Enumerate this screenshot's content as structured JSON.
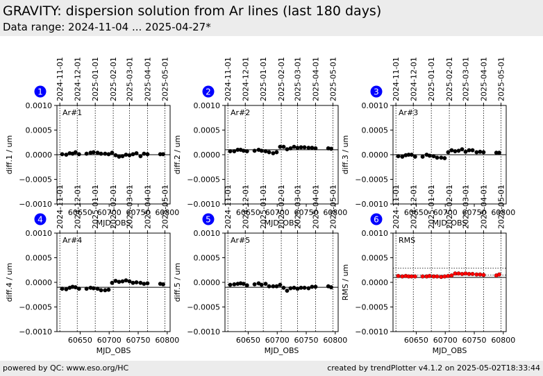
{
  "header": {
    "title": "GRAVITY: dispersion solution from Ar lines (last 180 days)",
    "subtitle": "Data range: 2024-11-04 ... 2025-04-27*"
  },
  "footer": {
    "left": "powered by QC: www.eso.org/HC",
    "right": "created by trendPlotter v4.1.2 on 2025-05-02T18:33:44"
  },
  "chart_data": [
    {
      "type": "scatter",
      "number": "1",
      "label": "Ar#1",
      "ylabel": "diff.1 / um",
      "xlabel": "MJD_OBS",
      "xlim": [
        60610,
        60805
      ],
      "ylim": [
        -0.001,
        0.001
      ],
      "x": [
        60619,
        60626,
        60632,
        60637,
        60642,
        60648,
        60661,
        60668,
        60673,
        60680,
        60686,
        60693,
        60699,
        60705,
        60711,
        60717,
        60723,
        60729,
        60735,
        60741,
        60747,
        60754,
        60760,
        60766,
        60788,
        60793
      ],
      "y": [
        1e-05,
        0.0,
        3e-05,
        2e-05,
        5e-05,
        1e-05,
        2e-05,
        4e-05,
        5e-05,
        4e-05,
        2e-05,
        2e-05,
        1e-05,
        4e-05,
        -1e-05,
        -4e-05,
        -3e-05,
        0.0,
        -1e-05,
        1e-05,
        3e-05,
        -3e-05,
        2e-05,
        1e-05,
        1e-05,
        1e-05
      ],
      "ref_line": 0.0
    },
    {
      "type": "scatter",
      "number": "2",
      "label": "Ar#2",
      "ylabel": "diff.2 / um",
      "xlabel": "MJD_OBS",
      "xlim": [
        60610,
        60805
      ],
      "ylim": [
        -0.001,
        0.001
      ],
      "x": [
        60619,
        60626,
        60632,
        60637,
        60642,
        60648,
        60661,
        60668,
        60673,
        60680,
        60686,
        60693,
        60699,
        60705,
        60711,
        60717,
        60723,
        60729,
        60735,
        60741,
        60747,
        60754,
        60760,
        60766,
        60788,
        60793
      ],
      "y": [
        7e-05,
        7e-05,
        0.0001,
        0.0001,
        8e-05,
        7e-05,
        8e-05,
        0.0001,
        8e-05,
        7e-05,
        5e-05,
        3e-05,
        5e-05,
        0.00016,
        0.00016,
        0.00011,
        0.00013,
        0.00016,
        0.00014,
        0.00015,
        0.00015,
        0.00014,
        0.00014,
        0.00013,
        0.00013,
        0.00012
      ],
      "ref_line": 0.0001
    },
    {
      "type": "scatter",
      "number": "3",
      "label": "Ar#3",
      "ylabel": "diff.3 / um",
      "xlabel": "MJD_OBS",
      "xlim": [
        60610,
        60805
      ],
      "ylim": [
        -0.001,
        0.001
      ],
      "x": [
        60619,
        60626,
        60632,
        60637,
        60642,
        60648,
        60661,
        60668,
        60673,
        60680,
        60686,
        60693,
        60699,
        60705,
        60711,
        60717,
        60723,
        60729,
        60735,
        60741,
        60747,
        60754,
        60760,
        60766,
        60788,
        60793
      ],
      "y": [
        -3e-05,
        -4e-05,
        -1e-05,
        0.0,
        0.0,
        -4e-05,
        -4e-05,
        0.0,
        -2e-05,
        -3e-05,
        -6e-05,
        -6e-05,
        -7e-05,
        5e-05,
        9e-05,
        7e-05,
        8e-05,
        0.00011,
        6e-05,
        9e-05,
        9e-05,
        5e-05,
        6e-05,
        5e-05,
        4e-05,
        4e-05
      ],
      "ref_line": 0.0
    },
    {
      "type": "scatter",
      "number": "4",
      "label": "Ar#4",
      "ylabel": "diff.4 / um",
      "xlabel": "MJD_OBS",
      "xlim": [
        60610,
        60805
      ],
      "ylim": [
        -0.001,
        0.001
      ],
      "x": [
        60619,
        60626,
        60632,
        60637,
        60642,
        60648,
        60661,
        60668,
        60673,
        60680,
        60686,
        60693,
        60699,
        60705,
        60711,
        60717,
        60723,
        60729,
        60735,
        60741,
        60747,
        60754,
        60760,
        60766,
        60788,
        60793
      ],
      "y": [
        -0.00013,
        -0.00014,
        -0.00011,
        -9e-05,
        -0.0001,
        -0.00013,
        -0.00013,
        -0.00011,
        -0.00012,
        -0.00013,
        -0.00016,
        -0.00016,
        -0.00015,
        -1e-05,
        3e-05,
        1e-05,
        2e-05,
        4e-05,
        2e-05,
        -1e-05,
        0.0,
        -1e-05,
        -3e-05,
        -2e-05,
        -3e-05,
        -4e-05
      ],
      "ref_line": -0.0001
    },
    {
      "type": "scatter",
      "number": "5",
      "label": "Ar#5",
      "ylabel": "diff.5 / um",
      "xlabel": "MJD_OBS",
      "xlim": [
        60610,
        60805
      ],
      "ylim": [
        -0.001,
        0.001
      ],
      "x": [
        60619,
        60626,
        60632,
        60637,
        60642,
        60648,
        60661,
        60668,
        60673,
        60680,
        60686,
        60693,
        60699,
        60705,
        60711,
        60717,
        60723,
        60729,
        60735,
        60741,
        60747,
        60754,
        60760,
        60766,
        60788,
        60793
      ],
      "y": [
        -5e-05,
        -4e-05,
        -3e-05,
        -2e-05,
        -3e-05,
        -6e-05,
        -4e-05,
        -2e-05,
        -5e-05,
        -3e-05,
        -8e-05,
        -8e-05,
        -8e-05,
        -5e-05,
        -0.00011,
        -0.00017,
        -0.00012,
        -0.00011,
        -0.00013,
        -0.00011,
        -0.00011,
        -0.00012,
        -9e-05,
        -9e-05,
        -8e-05,
        -0.0001
      ],
      "ref_line": -0.0001
    },
    {
      "type": "scatter",
      "number": "6",
      "label": "RMS",
      "ylabel": "RMS / um",
      "xlabel": "MJD_OBS",
      "xlim": [
        60610,
        60805
      ],
      "ylim": [
        -0.001,
        0.001
      ],
      "x": [
        60619,
        60626,
        60632,
        60637,
        60642,
        60648,
        60661,
        60668,
        60673,
        60680,
        60686,
        60693,
        60699,
        60705,
        60711,
        60717,
        60723,
        60729,
        60735,
        60741,
        60747,
        60754,
        60760,
        60766,
        60788,
        60793
      ],
      "y": [
        0.00013,
        0.00012,
        0.00013,
        0.00012,
        0.00012,
        0.00012,
        0.00012,
        0.00012,
        0.00013,
        0.00012,
        0.00012,
        0.00011,
        0.00012,
        0.00013,
        0.00014,
        0.00018,
        0.00018,
        0.00017,
        0.00018,
        0.00017,
        0.00017,
        0.00016,
        0.00016,
        0.00015,
        0.00014,
        0.00016
      ],
      "point_color": "#ff0000",
      "ref_line": 0.0001,
      "dotted_lines": [
        0.00015,
        0.00029
      ]
    }
  ],
  "shared": {
    "x_ticks": [
      60650,
      60700,
      60750,
      60800
    ],
    "x_tick_labels": [
      "60650",
      "60700",
      "60750",
      "60800"
    ],
    "y_ticks": [
      -0.001,
      -0.0005,
      0.0,
      0.0005,
      0.001
    ],
    "y_tick_labels": [
      "−0.0010",
      "−0.0005",
      "0.0000",
      "0.0005",
      "0.0010"
    ],
    "date_ticks": [
      {
        "mjd": 60615,
        "label": "2024-11-01"
      },
      {
        "mjd": 60645,
        "label": "2024-12-01"
      },
      {
        "mjd": 60676,
        "label": "2025-01-01"
      },
      {
        "mjd": 60707,
        "label": "2025-02-01"
      },
      {
        "mjd": 60735,
        "label": "2025-03-01"
      },
      {
        "mjd": 60766,
        "label": "2025-04-01"
      },
      {
        "mjd": 60796,
        "label": "2025-05-01"
      }
    ],
    "marker_color": "#0000ff"
  }
}
